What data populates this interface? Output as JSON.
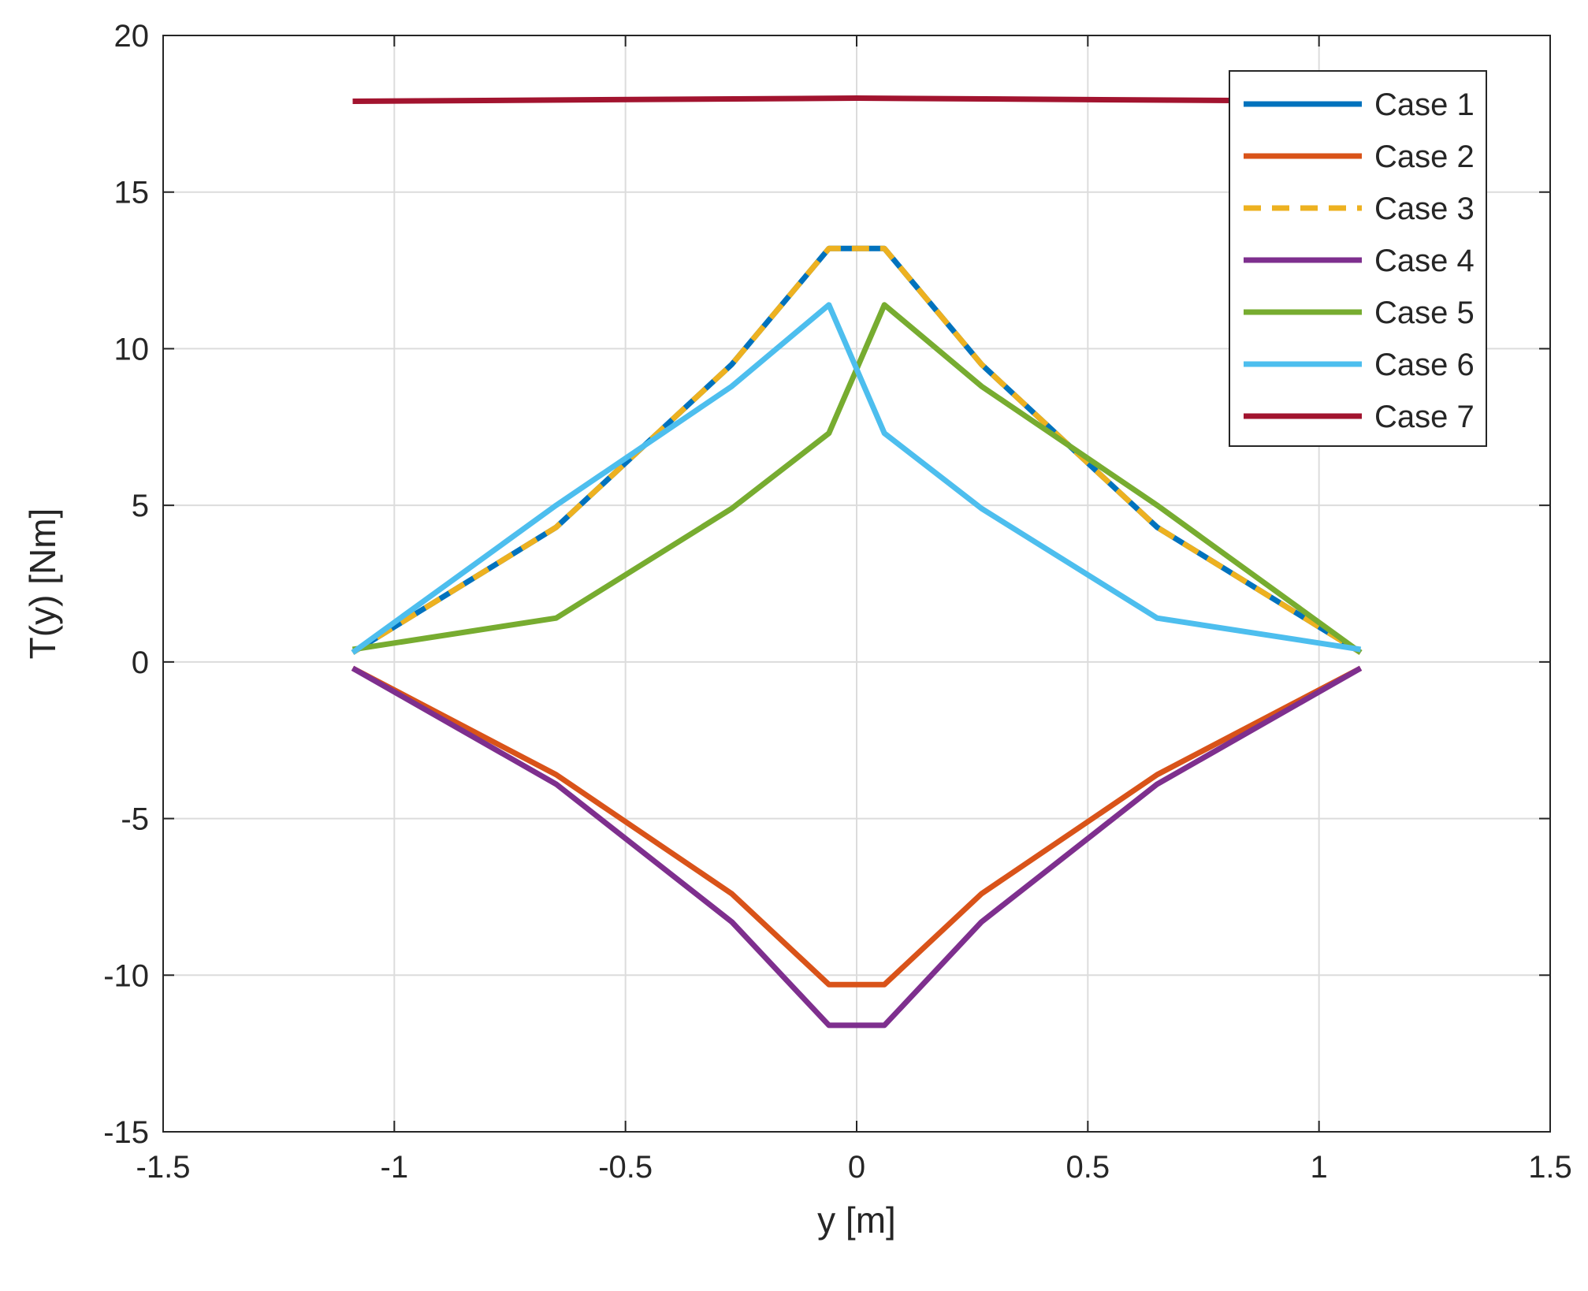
{
  "chart_data": {
    "type": "line",
    "title": "",
    "xlabel": "y [m]",
    "ylabel": "T(y) [Nm]",
    "xlim": [
      -1.5,
      1.5
    ],
    "ylim": [
      -15,
      20
    ],
    "xticks": [
      -1.5,
      -1,
      -0.5,
      0,
      0.5,
      1,
      1.5
    ],
    "xtick_labels": [
      "-1.5",
      "-1",
      "-0.5",
      "0",
      "0.5",
      "1",
      "1.5"
    ],
    "yticks": [
      -15,
      -10,
      -5,
      0,
      5,
      10,
      15,
      20
    ],
    "ytick_labels": [
      "-15",
      "-10",
      "-5",
      "0",
      "5",
      "10",
      "15",
      "20"
    ],
    "grid": true,
    "legend_position": "top-right",
    "series": [
      {
        "name": "Case 1",
        "color": "#0072BD",
        "dash": "solid",
        "x": [
          -1.09,
          -0.65,
          -0.27,
          -0.06,
          0.06,
          0.27,
          0.65,
          1.09
        ],
        "y": [
          0.3,
          4.3,
          9.5,
          13.2,
          13.2,
          9.5,
          4.3,
          0.3
        ]
      },
      {
        "name": "Case 2",
        "color": "#D95319",
        "dash": "solid",
        "x": [
          -1.09,
          -0.65,
          -0.27,
          -0.06,
          0.06,
          0.27,
          0.65,
          1.09
        ],
        "y": [
          -0.2,
          -3.6,
          -7.4,
          -10.3,
          -10.3,
          -7.4,
          -3.6,
          -0.2
        ]
      },
      {
        "name": "Case 3",
        "color": "#EDB120",
        "dash": "dashed",
        "x": [
          -1.09,
          -0.65,
          -0.27,
          -0.06,
          0.06,
          0.27,
          0.65,
          1.09
        ],
        "y": [
          0.3,
          4.3,
          9.5,
          13.2,
          13.2,
          9.5,
          4.3,
          0.3
        ]
      },
      {
        "name": "Case 4",
        "color": "#7E2F8E",
        "dash": "solid",
        "x": [
          -1.09,
          -0.65,
          -0.27,
          -0.06,
          0.06,
          0.27,
          0.65,
          1.09
        ],
        "y": [
          -0.2,
          -3.9,
          -8.3,
          -11.6,
          -11.6,
          -8.3,
          -3.9,
          -0.2
        ]
      },
      {
        "name": "Case 5",
        "color": "#77AC30",
        "dash": "solid",
        "x": [
          -1.09,
          -0.65,
          -0.27,
          -0.06,
          0.06,
          0.27,
          0.65,
          1.09
        ],
        "y": [
          0.4,
          1.4,
          4.9,
          7.3,
          11.4,
          8.8,
          5.0,
          0.3
        ]
      },
      {
        "name": "Case 6",
        "color": "#4DBEEE",
        "dash": "solid",
        "x": [
          -1.09,
          -0.65,
          -0.27,
          -0.06,
          0.06,
          0.27,
          0.65,
          1.09
        ],
        "y": [
          0.3,
          5.0,
          8.8,
          11.4,
          7.3,
          4.9,
          1.4,
          0.4
        ]
      },
      {
        "name": "Case 7",
        "color": "#A2142F",
        "dash": "solid",
        "x": [
          -1.09,
          0,
          1.09
        ],
        "y": [
          17.9,
          18.0,
          17.9
        ]
      }
    ]
  }
}
